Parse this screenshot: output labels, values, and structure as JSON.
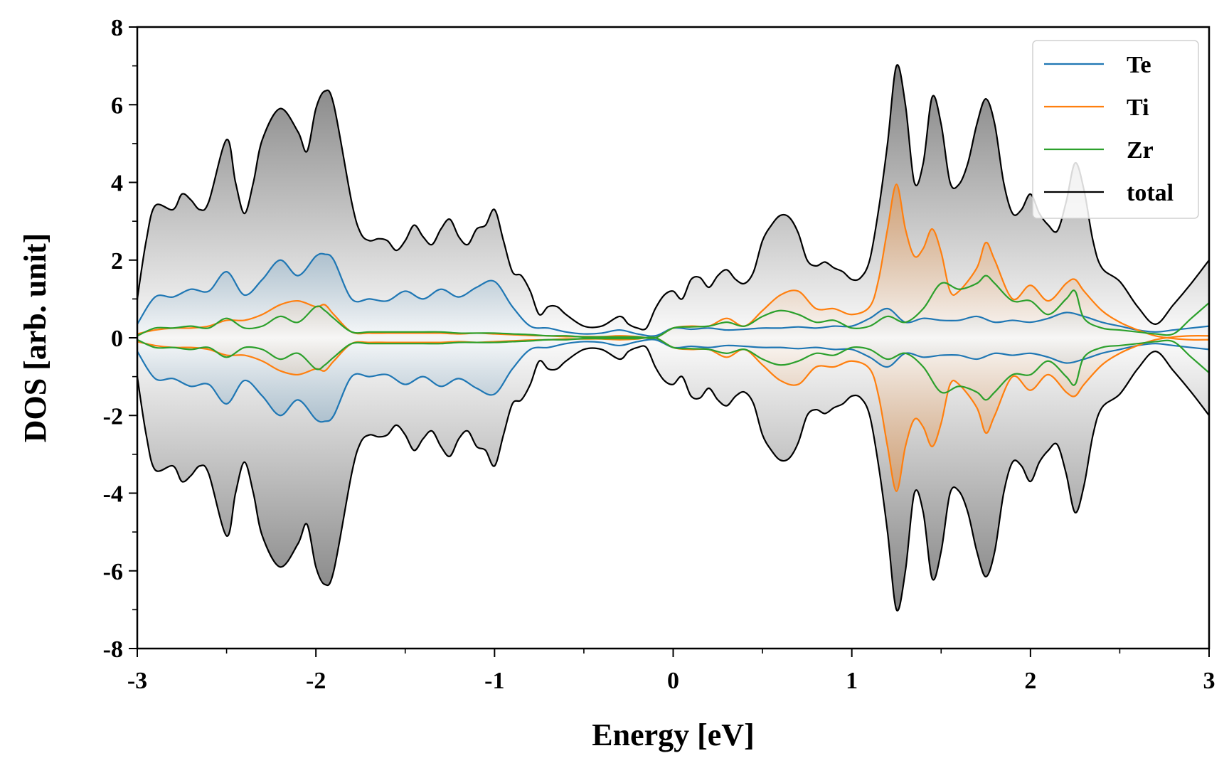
{
  "chart_data": {
    "type": "area",
    "xlabel": "Energy [eV]",
    "ylabel": "DOS [arb. unit]",
    "xlim": [
      -3,
      3
    ],
    "ylim": [
      -8,
      8
    ],
    "xticks": [
      -3,
      -2,
      -1,
      0,
      1,
      2,
      3
    ],
    "xtick_labels": [
      "-3",
      "-2",
      "-1",
      "0",
      "1",
      "2",
      "3"
    ],
    "yticks": [
      -8,
      -6,
      -4,
      -2,
      0,
      2,
      4,
      6,
      8
    ],
    "ytick_labels": [
      "-8",
      "-6",
      "-4",
      "-2",
      "0",
      "2",
      "4",
      "6",
      "8"
    ],
    "grid": false,
    "legend_position": "top-right",
    "symmetric_spin": true,
    "series": [
      {
        "name": "Te",
        "color": "#1f77b4",
        "shaded": true,
        "x": [
          -3.0,
          -2.9,
          -2.8,
          -2.7,
          -2.6,
          -2.5,
          -2.4,
          -2.3,
          -2.2,
          -2.1,
          -2.0,
          -1.95,
          -1.9,
          -1.8,
          -1.7,
          -1.6,
          -1.5,
          -1.4,
          -1.3,
          -1.2,
          -1.1,
          -1.0,
          -0.9,
          -0.8,
          -0.7,
          -0.6,
          -0.5,
          -0.4,
          -0.3,
          -0.2,
          -0.1,
          0.0,
          0.1,
          0.2,
          0.3,
          0.4,
          0.5,
          0.6,
          0.7,
          0.8,
          0.9,
          1.0,
          1.1,
          1.2,
          1.3,
          1.4,
          1.5,
          1.6,
          1.7,
          1.8,
          1.9,
          2.0,
          2.1,
          2.2,
          2.3,
          2.4,
          2.5,
          2.6,
          2.7,
          2.8,
          2.9,
          3.0
        ],
        "values": [
          0.35,
          1.05,
          1.05,
          1.25,
          1.2,
          1.7,
          1.1,
          1.5,
          2.0,
          1.6,
          2.1,
          2.15,
          2.0,
          1.0,
          1.0,
          0.95,
          1.2,
          1.0,
          1.25,
          1.05,
          1.3,
          1.45,
          0.8,
          0.3,
          0.25,
          0.15,
          0.1,
          0.12,
          0.2,
          0.1,
          0.05,
          0.25,
          0.22,
          0.25,
          0.2,
          0.22,
          0.25,
          0.25,
          0.28,
          0.25,
          0.3,
          0.3,
          0.5,
          0.75,
          0.4,
          0.5,
          0.45,
          0.45,
          0.55,
          0.4,
          0.45,
          0.4,
          0.5,
          0.65,
          0.55,
          0.4,
          0.3,
          0.2,
          0.15,
          0.2,
          0.25,
          0.3
        ]
      },
      {
        "name": "Ti",
        "color": "#ff7f0e",
        "shaded": true,
        "x": [
          -3.0,
          -2.9,
          -2.8,
          -2.7,
          -2.6,
          -2.5,
          -2.4,
          -2.3,
          -2.2,
          -2.1,
          -2.0,
          -1.95,
          -1.9,
          -1.8,
          -1.7,
          -1.6,
          -1.5,
          -1.4,
          -1.3,
          -1.2,
          -1.1,
          -1.0,
          -0.9,
          -0.8,
          -0.7,
          -0.6,
          -0.5,
          -0.4,
          -0.3,
          -0.2,
          -0.1,
          0.0,
          0.1,
          0.2,
          0.3,
          0.4,
          0.5,
          0.6,
          0.7,
          0.8,
          0.9,
          1.0,
          1.1,
          1.15,
          1.2,
          1.25,
          1.3,
          1.35,
          1.4,
          1.45,
          1.5,
          1.55,
          1.6,
          1.7,
          1.75,
          1.8,
          1.9,
          2.0,
          2.1,
          2.2,
          2.25,
          2.3,
          2.4,
          2.5,
          2.6,
          2.7,
          2.8,
          2.9,
          3.0
        ],
        "values": [
          0.1,
          0.2,
          0.25,
          0.25,
          0.3,
          0.45,
          0.45,
          0.6,
          0.85,
          0.95,
          0.8,
          0.85,
          0.6,
          0.15,
          0.12,
          0.12,
          0.12,
          0.12,
          0.12,
          0.1,
          0.12,
          0.1,
          0.08,
          0.06,
          0.05,
          0.03,
          0.03,
          0.03,
          0.05,
          0.03,
          0.0,
          0.25,
          0.3,
          0.3,
          0.5,
          0.3,
          0.7,
          1.1,
          1.2,
          0.75,
          0.75,
          0.6,
          0.8,
          1.5,
          2.8,
          3.95,
          2.8,
          2.1,
          2.3,
          2.8,
          2.2,
          1.2,
          1.2,
          1.8,
          2.45,
          2.0,
          1.0,
          1.35,
          0.95,
          1.4,
          1.5,
          1.2,
          0.7,
          0.4,
          0.2,
          0.05,
          -0.02,
          -0.05,
          -0.05
        ]
      },
      {
        "name": "Zr",
        "color": "#2ca02c",
        "shaded": false,
        "x": [
          -3.0,
          -2.9,
          -2.8,
          -2.7,
          -2.6,
          -2.5,
          -2.4,
          -2.3,
          -2.2,
          -2.1,
          -2.0,
          -1.95,
          -1.9,
          -1.8,
          -1.7,
          -1.6,
          -1.5,
          -1.4,
          -1.3,
          -1.2,
          -1.1,
          -1.0,
          -0.9,
          -0.8,
          -0.7,
          -0.6,
          -0.5,
          -0.4,
          -0.3,
          -0.2,
          -0.1,
          0.0,
          0.1,
          0.2,
          0.3,
          0.4,
          0.5,
          0.6,
          0.7,
          0.8,
          0.9,
          1.0,
          1.1,
          1.2,
          1.3,
          1.4,
          1.5,
          1.6,
          1.7,
          1.75,
          1.8,
          1.9,
          2.0,
          2.1,
          2.2,
          2.25,
          2.3,
          2.4,
          2.5,
          2.6,
          2.7,
          2.8,
          2.9,
          3.0
        ],
        "values": [
          0.05,
          0.25,
          0.25,
          0.3,
          0.25,
          0.5,
          0.25,
          0.3,
          0.55,
          0.4,
          0.8,
          0.7,
          0.5,
          0.15,
          0.15,
          0.15,
          0.15,
          0.15,
          0.15,
          0.12,
          0.12,
          0.12,
          0.1,
          0.08,
          0.05,
          0.05,
          0.02,
          0.02,
          0.02,
          0.02,
          0.0,
          0.25,
          0.28,
          0.3,
          0.4,
          0.3,
          0.55,
          0.7,
          0.6,
          0.4,
          0.45,
          0.25,
          0.3,
          0.55,
          0.4,
          0.75,
          1.4,
          1.25,
          1.4,
          1.6,
          1.4,
          0.95,
          0.95,
          0.6,
          1.0,
          1.2,
          0.5,
          0.25,
          0.2,
          0.15,
          0.1,
          0.1,
          0.5,
          0.9
        ]
      },
      {
        "name": "total",
        "color": "#000000",
        "shaded": true,
        "x": [
          -3.0,
          -2.95,
          -2.9,
          -2.8,
          -2.75,
          -2.7,
          -2.65,
          -2.6,
          -2.5,
          -2.45,
          -2.4,
          -2.35,
          -2.3,
          -2.2,
          -2.1,
          -2.05,
          -2.0,
          -1.95,
          -1.9,
          -1.8,
          -1.75,
          -1.7,
          -1.65,
          -1.6,
          -1.55,
          -1.5,
          -1.45,
          -1.4,
          -1.35,
          -1.3,
          -1.25,
          -1.2,
          -1.15,
          -1.1,
          -1.05,
          -1.0,
          -0.95,
          -0.9,
          -0.85,
          -0.8,
          -0.75,
          -0.7,
          -0.65,
          -0.6,
          -0.5,
          -0.4,
          -0.3,
          -0.25,
          -0.2,
          -0.15,
          -0.1,
          -0.05,
          0.0,
          0.05,
          0.1,
          0.15,
          0.2,
          0.25,
          0.3,
          0.35,
          0.4,
          0.45,
          0.5,
          0.55,
          0.6,
          0.65,
          0.7,
          0.75,
          0.8,
          0.85,
          0.9,
          0.95,
          1.0,
          1.05,
          1.1,
          1.15,
          1.2,
          1.25,
          1.3,
          1.35,
          1.4,
          1.45,
          1.5,
          1.55,
          1.6,
          1.65,
          1.7,
          1.75,
          1.8,
          1.85,
          1.9,
          1.95,
          2.0,
          2.05,
          2.1,
          2.15,
          2.2,
          2.25,
          2.3,
          2.35,
          2.4,
          2.5,
          2.6,
          2.7,
          2.8,
          2.9,
          3.0
        ],
        "values": [
          1.0,
          2.5,
          3.4,
          3.3,
          3.7,
          3.55,
          3.3,
          3.5,
          5.1,
          4.0,
          3.2,
          4.0,
          5.1,
          5.9,
          5.3,
          4.8,
          5.9,
          6.35,
          6.0,
          3.5,
          2.7,
          2.5,
          2.55,
          2.5,
          2.25,
          2.5,
          2.9,
          2.6,
          2.4,
          2.8,
          3.05,
          2.6,
          2.4,
          2.8,
          2.9,
          3.3,
          2.5,
          1.7,
          1.6,
          1.2,
          0.6,
          0.8,
          0.8,
          0.6,
          0.3,
          0.3,
          0.55,
          0.35,
          0.25,
          0.25,
          0.75,
          1.1,
          1.2,
          1.0,
          1.5,
          1.55,
          1.3,
          1.6,
          1.75,
          1.5,
          1.4,
          1.7,
          2.5,
          2.9,
          3.15,
          3.1,
          2.7,
          2.0,
          1.85,
          1.95,
          1.8,
          1.7,
          1.5,
          1.55,
          2.0,
          3.3,
          5.0,
          7.0,
          6.0,
          4.0,
          4.5,
          6.2,
          5.5,
          4.0,
          3.95,
          4.5,
          5.5,
          6.15,
          5.5,
          4.0,
          3.2,
          3.3,
          3.7,
          3.2,
          2.9,
          2.75,
          3.5,
          4.5,
          3.8,
          2.5,
          1.8,
          1.45,
          0.8,
          0.35,
          0.85,
          1.4,
          2.0
        ]
      }
    ]
  }
}
